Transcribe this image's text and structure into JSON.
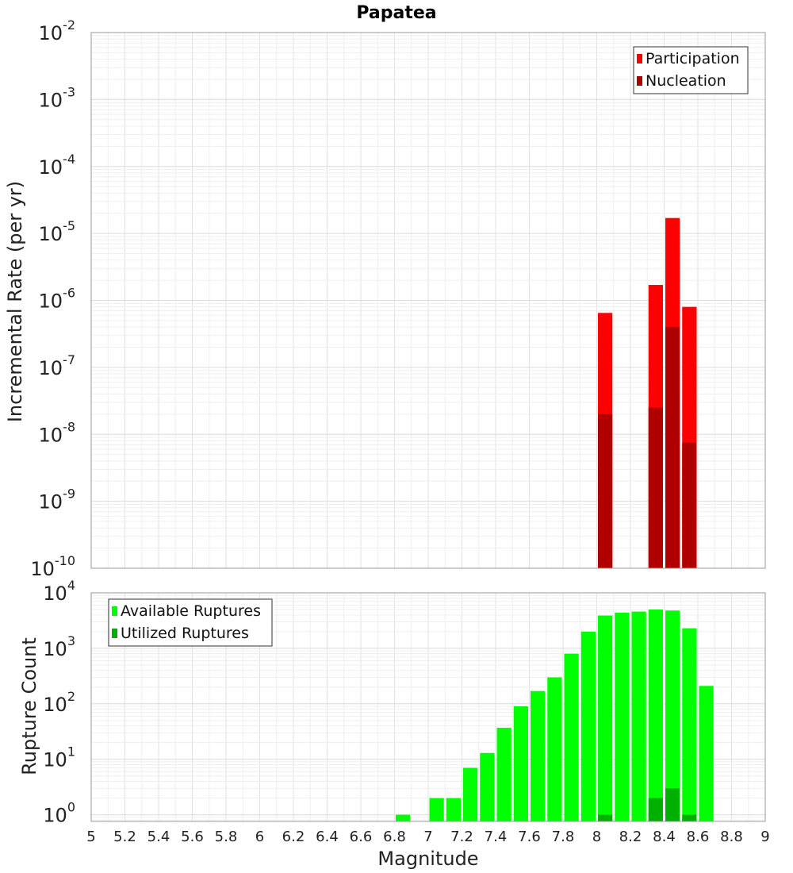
{
  "chart_data": [
    {
      "type": "bar",
      "panel": "top",
      "title": "Papatea",
      "xlabel": "",
      "ylabel": "Incremental Rate (per yr)",
      "yscale": "log",
      "ylim_exp": [
        -10,
        -2
      ],
      "y_tick_exponents": [
        "-10",
        "-9",
        "-8",
        "-7",
        "-6",
        "-5",
        "-4",
        "-3",
        "-2"
      ],
      "y_tick_base": "10",
      "xlim": [
        5,
        9
      ],
      "bin_width": 0.1,
      "legend_position": "top-right",
      "colors": {
        "Participation": "#ff0000",
        "Nucleation": "#b00000"
      },
      "series": [
        {
          "name": "Participation",
          "x": [
            8.05,
            8.35,
            8.45,
            8.55
          ],
          "values": [
            6.5e-07,
            1.7e-06,
            1.7e-05,
            8e-07
          ]
        },
        {
          "name": "Nucleation",
          "x": [
            8.05,
            8.35,
            8.45,
            8.55
          ],
          "values": [
            2e-08,
            2.5e-08,
            4e-07,
            7.5e-09
          ]
        }
      ]
    },
    {
      "type": "bar",
      "panel": "bottom",
      "title": "",
      "xlabel": "Magnitude",
      "ylabel": "Rupture Count",
      "yscale": "log",
      "ylim_exp": [
        -0.12,
        4
      ],
      "y_tick_exponents": [
        "0",
        "1",
        "2",
        "3",
        "4"
      ],
      "y_tick_base": "10",
      "xlim": [
        5,
        9
      ],
      "x_ticks": [
        "5",
        "5.2",
        "5.4",
        "5.6",
        "5.8",
        "6",
        "6.2",
        "6.4",
        "6.6",
        "6.8",
        "7",
        "7.2",
        "7.4",
        "7.6",
        "7.8",
        "8",
        "8.2",
        "8.4",
        "8.6",
        "8.8",
        "9"
      ],
      "bin_width": 0.1,
      "legend_position": "top-left",
      "colors": {
        "Available Ruptures": "#00ff00",
        "Utilized Ruptures": "#00b000"
      },
      "series": [
        {
          "name": "Available Ruptures",
          "x": [
            6.85,
            7.05,
            7.15,
            7.25,
            7.35,
            7.45,
            7.55,
            7.65,
            7.75,
            7.85,
            7.95,
            8.05,
            8.15,
            8.25,
            8.35,
            8.45,
            8.55,
            8.65
          ],
          "values": [
            1,
            2,
            2,
            7,
            13,
            37,
            90,
            170,
            300,
            800,
            2000,
            3900,
            4400,
            4600,
            5000,
            4800,
            2300,
            210
          ]
        },
        {
          "name": "Utilized Ruptures",
          "x": [
            8.05,
            8.35,
            8.45,
            8.55
          ],
          "values": [
            1,
            2,
            3,
            1
          ]
        }
      ]
    }
  ]
}
